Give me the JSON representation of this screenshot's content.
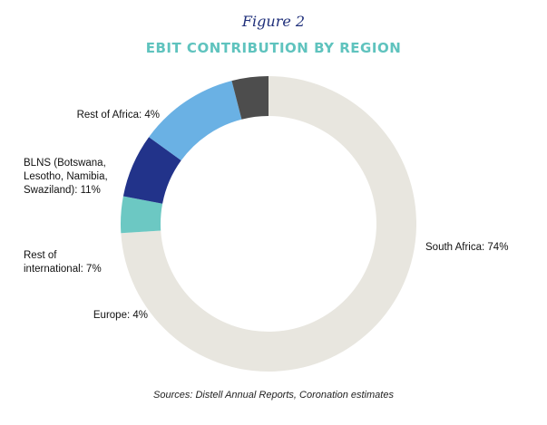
{
  "figure_label": "Figure 2",
  "source": "Sources: Distell Annual Reports, Coronation estimates",
  "chart_data": {
    "type": "pie",
    "title": "EBIT CONTRIBUTION BY REGION",
    "style": "donut",
    "slices": [
      {
        "label": "South Africa: 74%",
        "name": "South Africa",
        "value": 74,
        "color": "#e8e6df"
      },
      {
        "label": "Europe: 4%",
        "name": "Europe",
        "value": 4,
        "color": "#6cc8c3"
      },
      {
        "label": "Rest of international: 7%",
        "name": "Rest of international",
        "value": 7,
        "color": "#22338a"
      },
      {
        "label": "BLNS (Botswana, Lesotho, Namibia, Swaziland): 11%",
        "name": "BLNS (Botswana, Lesotho, Namibia, Swaziland)",
        "value": 11,
        "color": "#6ab1e4"
      },
      {
        "label": "Rest of Africa: 4%",
        "name": "Rest of Africa",
        "value": 4,
        "color": "#4d4d4d"
      }
    ]
  }
}
